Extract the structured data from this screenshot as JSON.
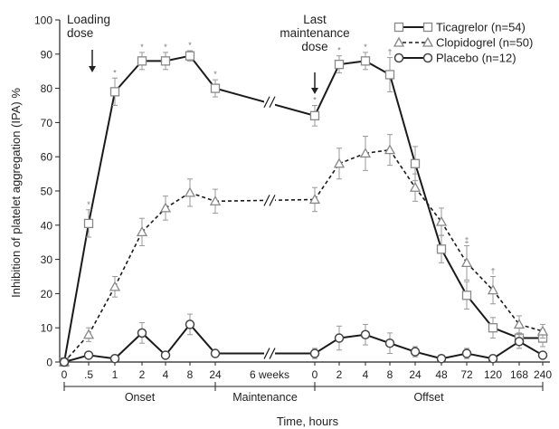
{
  "chart_data": {
    "type": "line",
    "title": "",
    "xlabel": "Time, hours",
    "ylabel": "Inhibition of platelet aggregation (IPA) %",
    "ylim": [
      0,
      100
    ],
    "yticks": [
      "0",
      "10",
      "20",
      "30",
      "40",
      "50",
      "60",
      "70",
      "80",
      "90",
      "100"
    ],
    "categories": [
      "0",
      ".5",
      "1",
      "2",
      "4",
      "8",
      "24",
      "6 weeks",
      "0",
      "2",
      "4",
      "8",
      "24",
      "48",
      "72",
      "120",
      "168",
      "240"
    ],
    "axis_break_label": "//",
    "phases": [
      {
        "label": "Onset",
        "from": "0",
        "to": "24"
      },
      {
        "label": "Maintenance",
        "from": "24",
        "to": "0"
      },
      {
        "label": "Offset",
        "from": "0",
        "to": "240"
      }
    ],
    "annotations": [
      {
        "text": [
          "Loading",
          "dose"
        ],
        "at": "0"
      },
      {
        "text": [
          "Last",
          "maintenance",
          "dose"
        ],
        "at": "0"
      }
    ],
    "legend": {
      "placement": "top-right"
    },
    "significance_markers": [
      "*",
      "†",
      "‡"
    ],
    "series": [
      {
        "name": "Ticagrelor (n=54)",
        "style": "solid",
        "marker": "square",
        "values": [
          0,
          40.5,
          79,
          88,
          88,
          89.5,
          80,
          null,
          72,
          87,
          88,
          84,
          58,
          33,
          19.5,
          10,
          7,
          7
        ],
        "errors": [
          0,
          4,
          4,
          2.5,
          2.5,
          1.5,
          2.5,
          null,
          3,
          2.5,
          2.5,
          5,
          5,
          4,
          4,
          3,
          3,
          2.5
        ],
        "sig": [
          "",
          "*",
          "*",
          "*",
          "*",
          "*",
          "*",
          "",
          "*",
          "*",
          "*",
          "†",
          "",
          "",
          "",
          "",
          "",
          ""
        ]
      },
      {
        "name": "Clopidogrel (n=50)",
        "style": "dashed",
        "marker": "triangle",
        "values": [
          0,
          8,
          22,
          38,
          45,
          49.5,
          47,
          null,
          47.5,
          58,
          61,
          62,
          51,
          41,
          29,
          21,
          11,
          9
        ],
        "errors": [
          0,
          2,
          3,
          4,
          3.5,
          4,
          3.5,
          null,
          3.5,
          4.5,
          5,
          4.5,
          4,
          4,
          5,
          4,
          2.5,
          2
        ],
        "sig": [
          "",
          "",
          "",
          "",
          "",
          "",
          "",
          "",
          "",
          "",
          "",
          "",
          "",
          "",
          "‡",
          "†",
          "",
          ""
        ]
      },
      {
        "name": "Placebo (n=12)",
        "style": "solid",
        "marker": "circle",
        "values": [
          0,
          2,
          1,
          8.5,
          2,
          11,
          2.5,
          null,
          2.5,
          7,
          8,
          5.5,
          3,
          1,
          2.5,
          1,
          6,
          2
        ],
        "errors": [
          0,
          1,
          1,
          3,
          1,
          3,
          1,
          null,
          1.5,
          3.5,
          3,
          3,
          1.5,
          1,
          1.5,
          1,
          2,
          1
        ],
        "sig": [
          "",
          "",
          "",
          "",
          "",
          "",
          "",
          "",
          "",
          "",
          "",
          "",
          "",
          "",
          "",
          "",
          "",
          ""
        ]
      }
    ]
  },
  "colors": {
    "axis": "#222222",
    "line": "#1a1a1a",
    "marker_fill": "#ffffff",
    "marker_stroke": "#888888",
    "error_bar": "#999999"
  }
}
